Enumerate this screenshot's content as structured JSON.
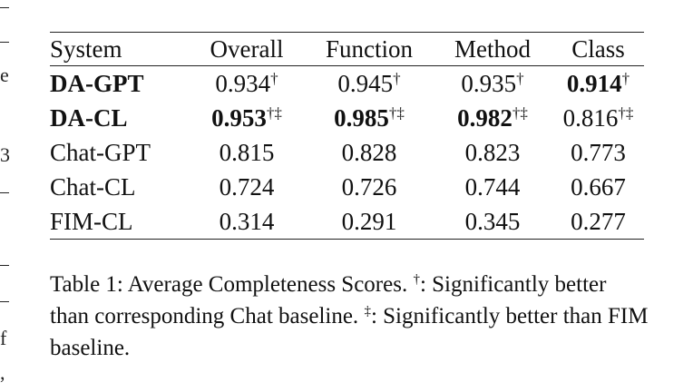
{
  "table": {
    "headers": [
      "System",
      "Overall",
      "Function",
      "Method",
      "Class"
    ],
    "rows": [
      {
        "system": "DA-GPT",
        "system_bold": true,
        "cells": [
          {
            "value": "0.934",
            "mark": "†",
            "bold": false
          },
          {
            "value": "0.945",
            "mark": "†",
            "bold": false
          },
          {
            "value": "0.935",
            "mark": "†",
            "bold": false
          },
          {
            "value": "0.914",
            "mark": "†",
            "bold": true
          }
        ]
      },
      {
        "system": "DA-CL",
        "system_bold": true,
        "cells": [
          {
            "value": "0.953",
            "mark": "†‡",
            "bold": true
          },
          {
            "value": "0.985",
            "mark": "†‡",
            "bold": true
          },
          {
            "value": "0.982",
            "mark": "†‡",
            "bold": true
          },
          {
            "value": "0.816",
            "mark": "†‡",
            "bold": false
          }
        ]
      },
      {
        "system": "Chat-GPT",
        "system_bold": false,
        "cells": [
          {
            "value": "0.815",
            "mark": "",
            "bold": false
          },
          {
            "value": "0.828",
            "mark": "",
            "bold": false
          },
          {
            "value": "0.823",
            "mark": "",
            "bold": false
          },
          {
            "value": "0.773",
            "mark": "",
            "bold": false
          }
        ]
      },
      {
        "system": "Chat-CL",
        "system_bold": false,
        "cells": [
          {
            "value": "0.724",
            "mark": "",
            "bold": false
          },
          {
            "value": "0.726",
            "mark": "",
            "bold": false
          },
          {
            "value": "0.744",
            "mark": "",
            "bold": false
          },
          {
            "value": "0.667",
            "mark": "",
            "bold": false
          }
        ]
      },
      {
        "system": "FIM-CL",
        "system_bold": false,
        "cells": [
          {
            "value": "0.314",
            "mark": "",
            "bold": false
          },
          {
            "value": "0.291",
            "mark": "",
            "bold": false
          },
          {
            "value": "0.345",
            "mark": "",
            "bold": false
          },
          {
            "value": "0.277",
            "mark": "",
            "bold": false
          }
        ]
      }
    ]
  },
  "caption": {
    "part1": "Table 1: Average Completeness Scores. ",
    "mark1": "†",
    "part2": ": Significantly better than corresponding Chat baseline. ",
    "mark2": "‡",
    "part3": ": Significantly better than FIM baseline."
  },
  "margin_fragments": [
    "e",
    "3",
    "f",
    ","
  ]
}
